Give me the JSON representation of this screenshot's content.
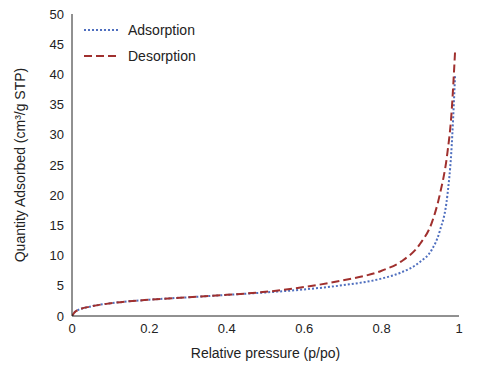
{
  "chart_data": {
    "type": "line",
    "x_label": "Relative pressure (p/po)",
    "y_label": "Quantity Adsorbed (cm³/g STP)",
    "x": [
      0,
      0.01,
      0.05,
      0.1,
      0.2,
      0.3,
      0.4,
      0.5,
      0.6,
      0.7,
      0.8,
      0.85,
      0.9,
      0.93,
      0.95,
      0.97,
      0.98,
      0.99
    ],
    "series": [
      {
        "name": "Adsorption",
        "color": "#4f6fbf",
        "line_style": "dotted",
        "values": [
          0,
          0.8,
          1.6,
          2.1,
          2.7,
          3.1,
          3.5,
          3.9,
          4.4,
          5.1,
          6.2,
          7.2,
          9,
          11,
          14,
          20,
          27,
          40
        ]
      },
      {
        "name": "Desorption",
        "color": "#a0302e",
        "line_style": "dashed",
        "values": [
          0,
          0.8,
          1.6,
          2.1,
          2.7,
          3.1,
          3.5,
          4.0,
          4.8,
          5.9,
          7.5,
          9,
          12,
          15.5,
          20,
          27,
          33,
          44
        ]
      }
    ],
    "xlim": [
      0,
      1
    ],
    "xticks": [
      0,
      0.2,
      0.4,
      0.6,
      0.8,
      1
    ],
    "ylim": [
      0,
      50
    ],
    "yticks": [
      0,
      5,
      10,
      15,
      20,
      25,
      30,
      35,
      40,
      45,
      50
    ],
    "grid": false,
    "legend": "upper left"
  }
}
